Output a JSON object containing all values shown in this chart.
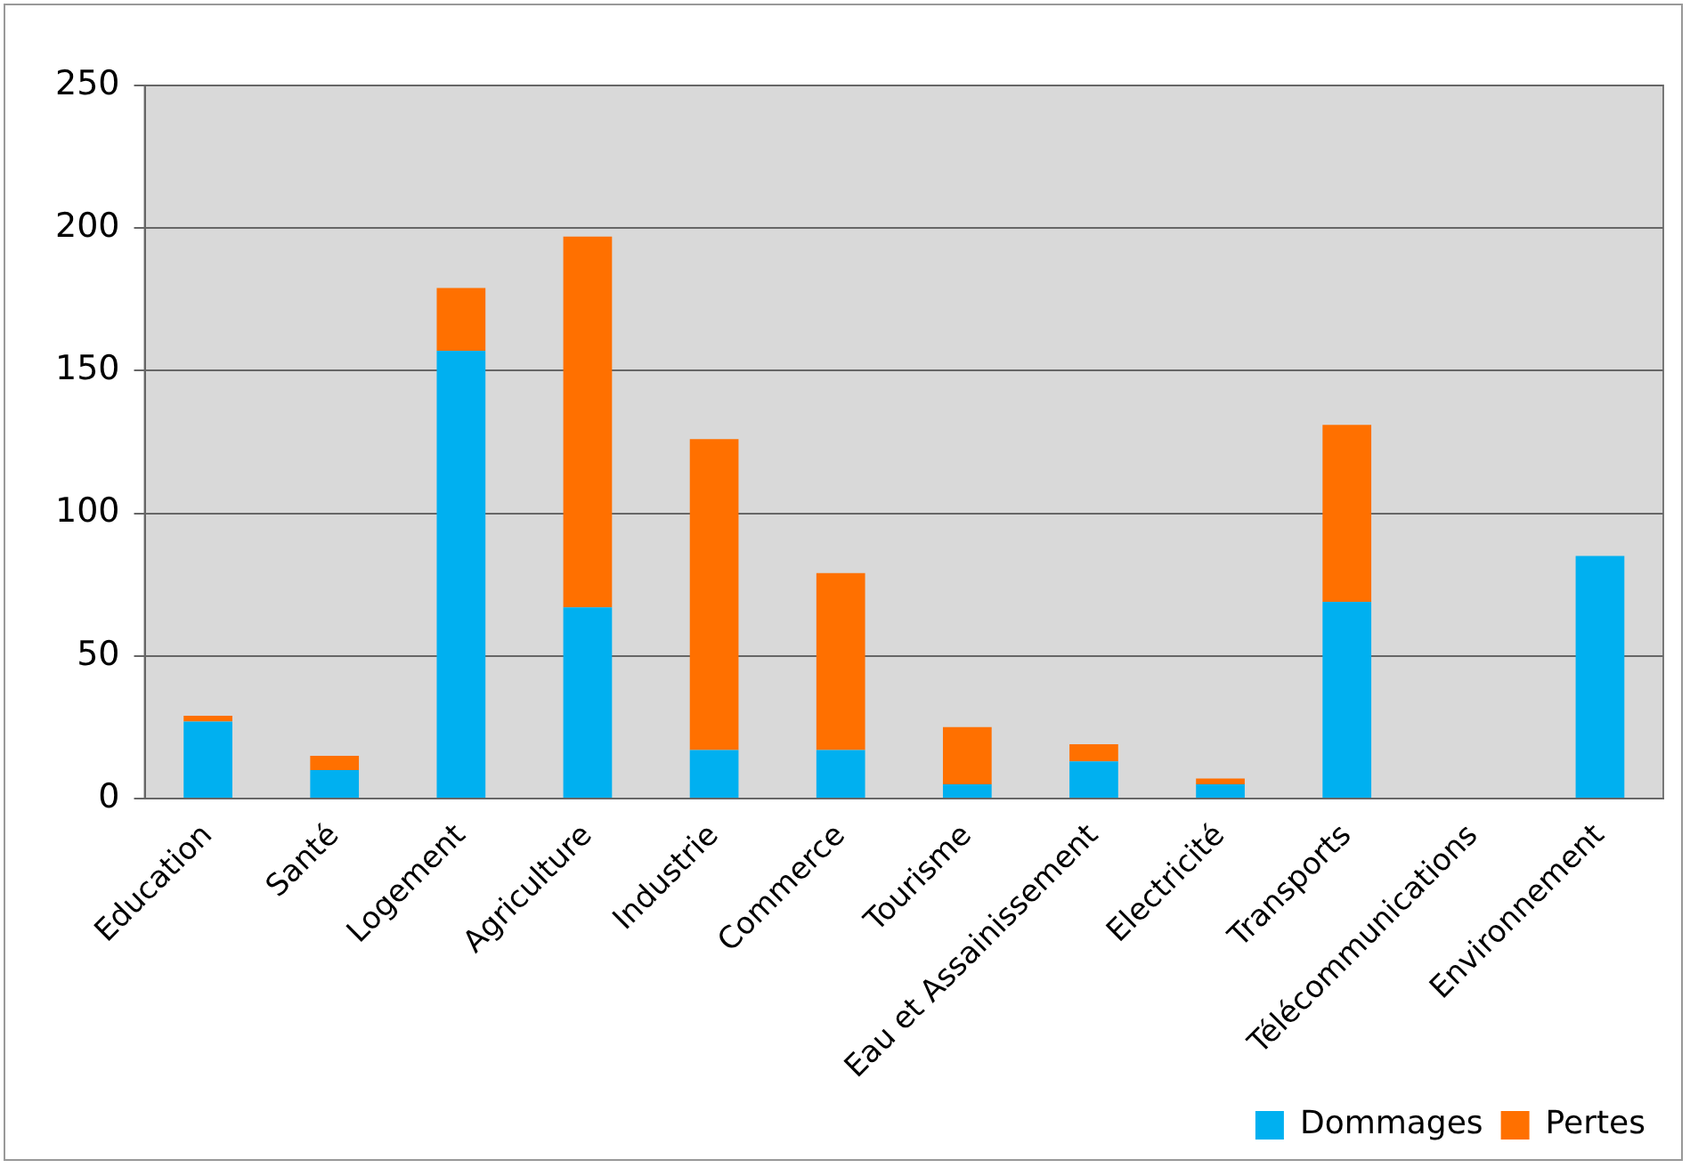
{
  "chart_data": {
    "type": "bar",
    "stacked": true,
    "categories": [
      "Education",
      "Santé",
      "Logement",
      "Agriculture",
      "Industrie",
      "Commerce",
      "Tourisme",
      "Eau et Assainissement",
      "Electricité",
      "Transports",
      "Télécommunications",
      "Environnement"
    ],
    "series": [
      {
        "name": "Dommages",
        "color": "#00b0f0",
        "values": [
          27,
          10,
          157,
          67,
          17,
          17,
          5,
          13,
          5,
          69,
          0,
          85
        ]
      },
      {
        "name": "Pertes",
        "color": "#ff7000",
        "values": [
          2,
          5,
          22,
          130,
          109,
          62,
          20,
          6,
          2,
          62,
          0,
          0
        ]
      }
    ],
    "ylim": [
      0,
      250
    ],
    "yticks": [
      0,
      50,
      100,
      150,
      200,
      250
    ],
    "grid": "y",
    "legend": "bottom right"
  }
}
